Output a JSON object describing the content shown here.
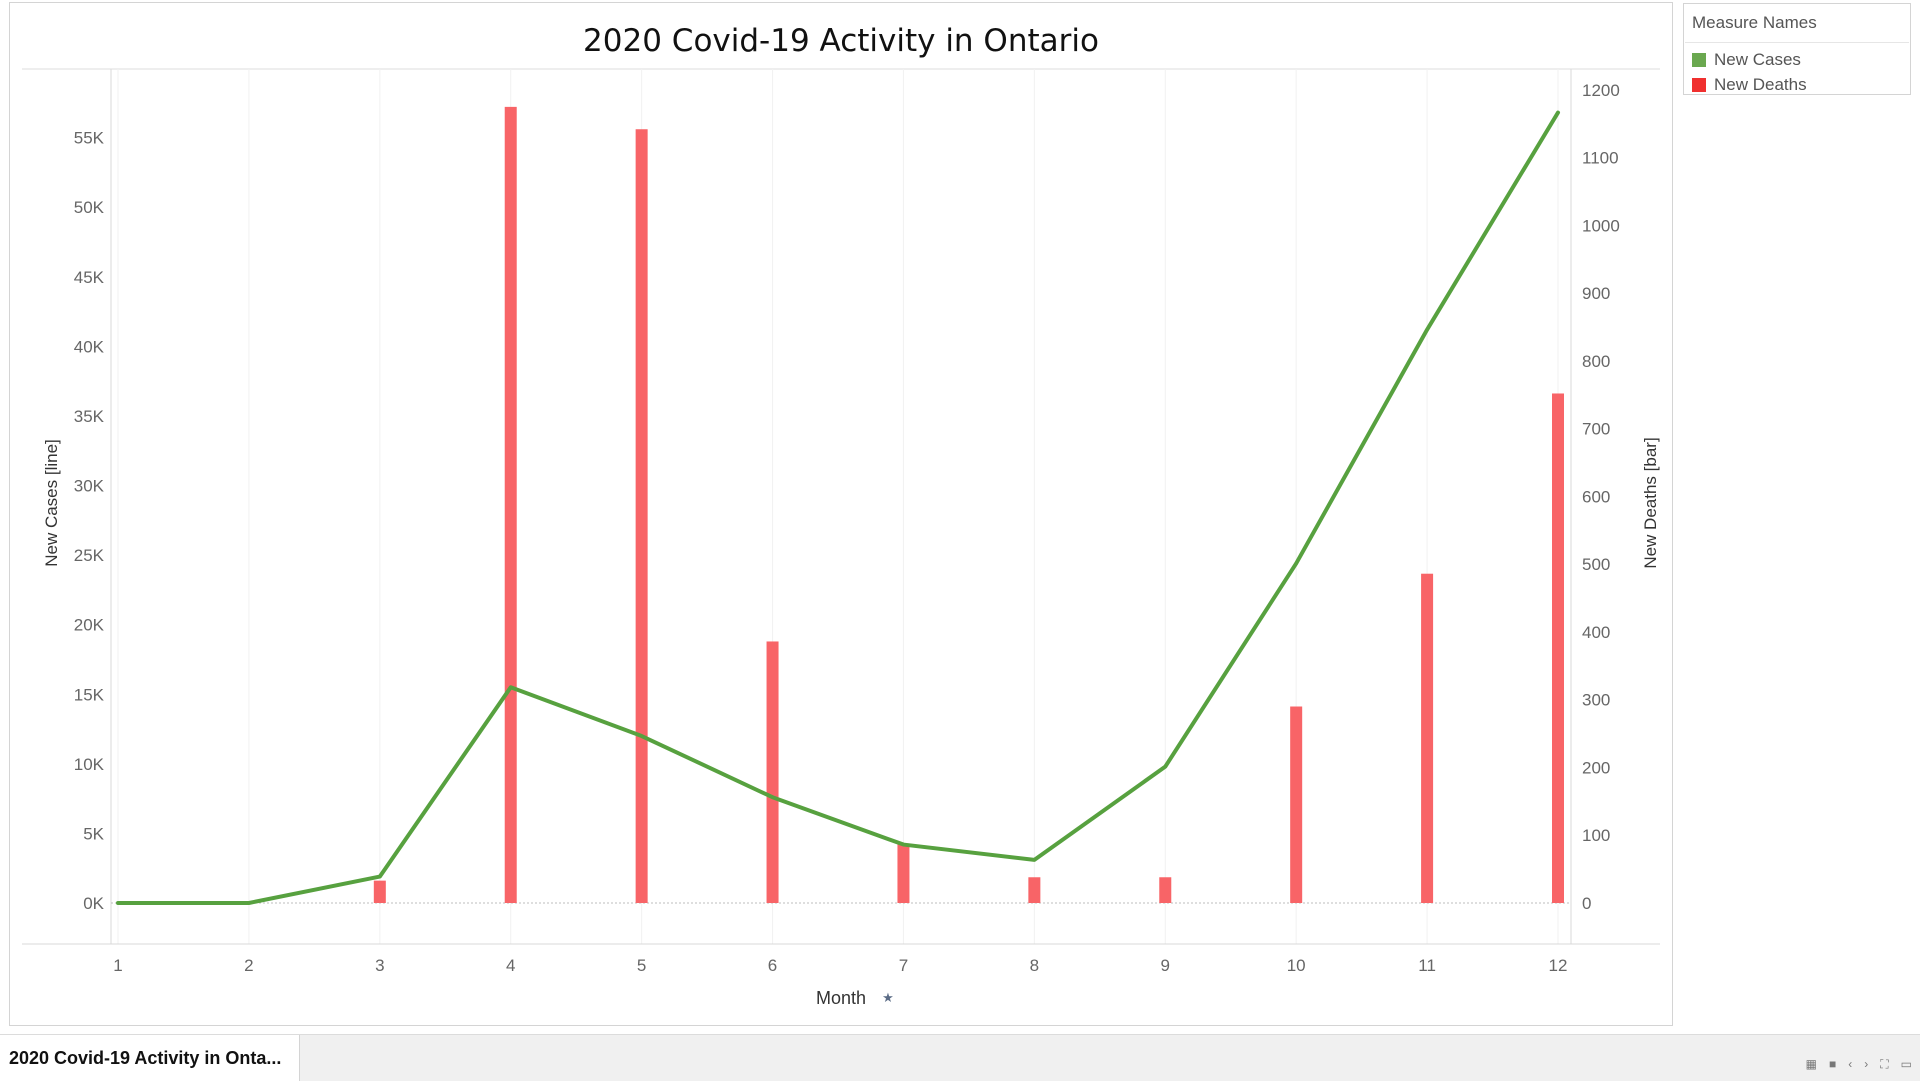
{
  "sheet_tab": {
    "label": "2020 Covid-19 Activity in Onta..."
  },
  "legend": {
    "title": "Measure Names",
    "items": [
      {
        "label": "New Cases",
        "color": "#6aa84f"
      },
      {
        "label": "New Deaths",
        "color": "#f0302f"
      }
    ]
  },
  "nav_icons": [
    "grid-view-icon",
    "single-view-icon",
    "prev-icon",
    "next-icon",
    "fullscreen-icon",
    "present-icon"
  ],
  "chart_data": {
    "type": "bar",
    "title": "2020 Covid-19 Activity in Ontario",
    "xlabel": "Month",
    "x": [
      1,
      2,
      3,
      4,
      5,
      6,
      7,
      8,
      9,
      10,
      11,
      12
    ],
    "x_ticks": [
      "1",
      "2",
      "3",
      "4",
      "5",
      "6",
      "7",
      "8",
      "9",
      "10",
      "11",
      "12"
    ],
    "series": [
      {
        "name": "New Cases",
        "mark": "line",
        "axis": "left",
        "color": "#57a13f",
        "values": [
          0,
          0,
          1900,
          15500,
          12000,
          7600,
          4200,
          3100,
          9800,
          24400,
          41200,
          56800
        ]
      },
      {
        "name": "New Deaths",
        "mark": "bar",
        "axis": "right",
        "color": "#f86467",
        "values": [
          0,
          0,
          33,
          1175,
          1142,
          386,
          87,
          38,
          38,
          290,
          486,
          752
        ]
      }
    ],
    "y_left": {
      "label": "New Cases [line]",
      "min": 0,
      "max": 57000,
      "ticks": [
        0,
        5000,
        10000,
        15000,
        20000,
        25000,
        30000,
        35000,
        40000,
        45000,
        50000,
        55000
      ],
      "tick_labels": [
        "0K",
        "5K",
        "10K",
        "15K",
        "20K",
        "25K",
        "30K",
        "35K",
        "40K",
        "45K",
        "50K",
        "55K"
      ]
    },
    "y_right": {
      "label": "New Deaths [bar]",
      "min": 0,
      "max": 1200,
      "ticks": [
        0,
        100,
        200,
        300,
        400,
        500,
        600,
        700,
        800,
        900,
        1000,
        1100,
        1200
      ],
      "tick_labels": [
        "0",
        "100",
        "200",
        "300",
        "400",
        "500",
        "600",
        "700",
        "800",
        "900",
        "1000",
        "1100",
        "1200"
      ]
    },
    "grid": true
  }
}
